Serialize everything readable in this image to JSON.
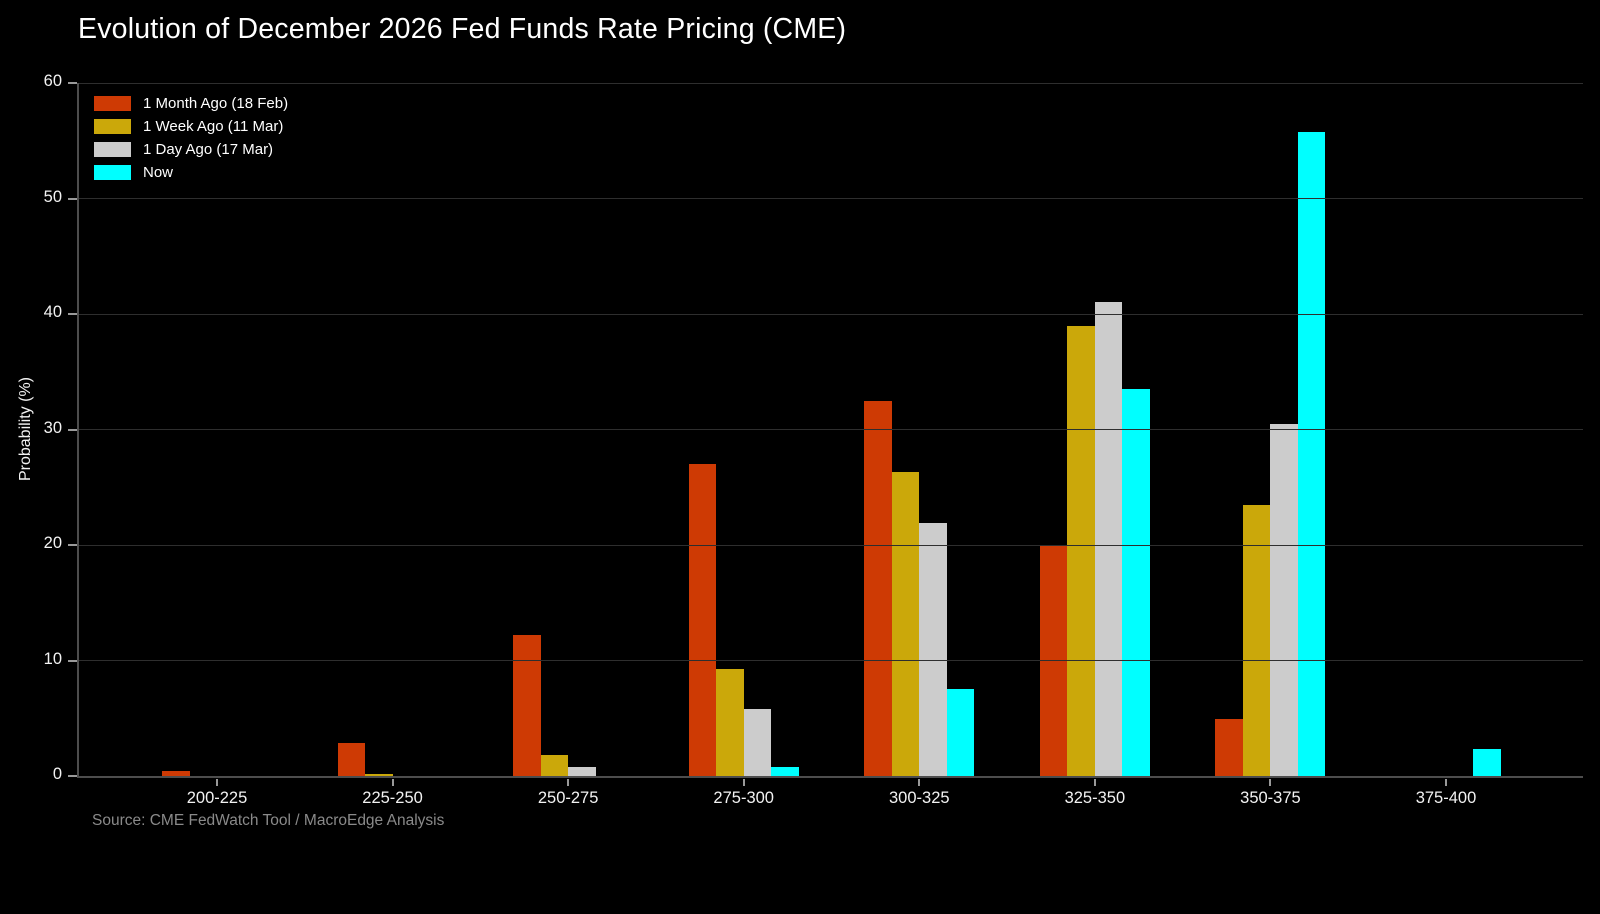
{
  "chart_data": {
    "type": "bar",
    "title": "Evolution of December 2026 Fed Funds Rate Pricing (CME)",
    "ylabel": "Probability (%)",
    "xlabel": "",
    "source": "Source: CME FedWatch Tool / MacroEdge Analysis",
    "ylim": [
      0,
      60
    ],
    "yticks": [
      0,
      10,
      20,
      30,
      40,
      50,
      60
    ],
    "grid": "horizontal",
    "legend_position": "top-left",
    "background_color": "#000000",
    "categories": [
      "200-225",
      "225-250",
      "250-275",
      "275-300",
      "300-325",
      "325-350",
      "350-375",
      "375-400"
    ],
    "series": [
      {
        "name": "1 Month Ago (18 Feb)",
        "color": "#CE3A04",
        "values": [
          0.4,
          2.9,
          12.2,
          27.0,
          32.5,
          20.0,
          4.9,
          0
        ]
      },
      {
        "name": "1 Week Ago (11 Mar)",
        "color": "#CBA80A",
        "values": [
          0,
          0.2,
          1.8,
          9.3,
          26.3,
          39.0,
          23.5,
          0
        ]
      },
      {
        "name": "1 Day Ago (17 Mar)",
        "color": "#CCCCCC",
        "values": [
          0,
          0,
          0.8,
          5.8,
          21.9,
          41.0,
          30.5,
          0
        ]
      },
      {
        "name": "Now",
        "color": "#00FFFF",
        "values": [
          0,
          0,
          0,
          0.8,
          7.5,
          33.5,
          55.8,
          2.3
        ]
      }
    ]
  }
}
